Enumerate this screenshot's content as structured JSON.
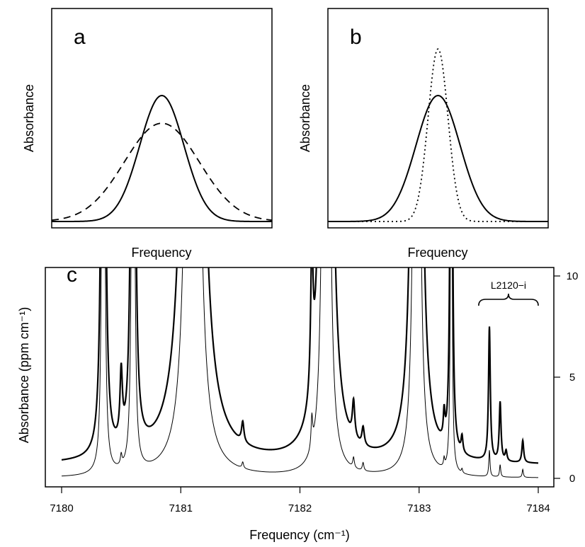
{
  "chart_data": [
    {
      "panel": "a",
      "type": "line",
      "panel_label": "a",
      "xlabel": "Frequency",
      "ylabel": "Absorbance",
      "x_ticks": "none",
      "y_ticks": "none",
      "series": [
        {
          "style": "solid",
          "shape": "gaussian",
          "center": 0.5,
          "width": 0.1,
          "peak": 1.0
        },
        {
          "style": "dashed",
          "shape": "gaussian",
          "center": 0.5,
          "width": 0.17,
          "peak": 0.78
        }
      ]
    },
    {
      "panel": "b",
      "type": "line",
      "panel_label": "b",
      "xlabel": "Frequency",
      "ylabel": "Absorbance",
      "x_ticks": "none",
      "y_ticks": "none",
      "series": [
        {
          "style": "solid",
          "shape": "gaussian",
          "center": 0.5,
          "width": 0.1,
          "peak": 1.0
        },
        {
          "style": "dotted",
          "shape": "gaussian",
          "center": 0.5,
          "width": 0.045,
          "peak": 1.37
        }
      ]
    },
    {
      "panel": "c",
      "type": "line",
      "panel_label": "c",
      "xlabel": "Frequency (cm⁻¹)",
      "ylabel": "Absorbance (ppm cm⁻¹)",
      "xlim": [
        7180,
        7184
      ],
      "ylim": [
        0,
        10
      ],
      "x_ticks": [
        "7180",
        "7181",
        "7182",
        "7183",
        "7184"
      ],
      "y_ticks": [
        "0",
        "5",
        "10"
      ],
      "y_axis_side": "right",
      "annotation": {
        "text": "L2120−i",
        "from": 7183.5,
        "to": 7184.0
      },
      "series": [
        {
          "style": "thick",
          "baseline": 0.65,
          "peaks": [
            {
              "x": 7180.35,
              "h": 60,
              "w": 0.012
            },
            {
              "x": 7180.5,
              "h": 3.3,
              "w": 0.012
            },
            {
              "x": 7180.6,
              "h": 60,
              "w": 0.012
            },
            {
              "x": 7181.1,
              "h": 200,
              "w": 0.03
            },
            {
              "x": 7181.52,
              "h": 1.0,
              "w": 0.012
            },
            {
              "x": 7182.1,
              "h": 6.8,
              "w": 0.012
            },
            {
              "x": 7182.22,
              "h": 160,
              "w": 0.02
            },
            {
              "x": 7182.45,
              "h": 1.8,
              "w": 0.012
            },
            {
              "x": 7182.53,
              "h": 0.9,
              "w": 0.012
            },
            {
              "x": 7182.98,
              "h": 120,
              "w": 0.02
            },
            {
              "x": 7183.21,
              "h": 1.3,
              "w": 0.008
            },
            {
              "x": 7183.27,
              "h": 40,
              "w": 0.008
            },
            {
              "x": 7183.36,
              "h": 0.8,
              "w": 0.009
            },
            {
              "x": 7183.59,
              "h": 6.6,
              "w": 0.009
            },
            {
              "x": 7183.68,
              "h": 2.9,
              "w": 0.009
            },
            {
              "x": 7183.73,
              "h": 0.5,
              "w": 0.009
            },
            {
              "x": 7183.87,
              "h": 1.1,
              "w": 0.009
            }
          ]
        },
        {
          "style": "thin",
          "baseline": 0.0,
          "peaks": [
            {
              "x": 7180.35,
              "h": 60,
              "w": 0.008
            },
            {
              "x": 7180.5,
              "h": 0.5,
              "w": 0.008
            },
            {
              "x": 7180.6,
              "h": 60,
              "w": 0.008
            },
            {
              "x": 7181.1,
              "h": 200,
              "w": 0.02
            },
            {
              "x": 7181.52,
              "h": 0.3,
              "w": 0.008
            },
            {
              "x": 7182.1,
              "h": 1.5,
              "w": 0.008
            },
            {
              "x": 7182.22,
              "h": 120,
              "w": 0.014
            },
            {
              "x": 7182.45,
              "h": 0.5,
              "w": 0.008
            },
            {
              "x": 7182.53,
              "h": 0.4,
              "w": 0.008
            },
            {
              "x": 7182.98,
              "h": 100,
              "w": 0.014
            },
            {
              "x": 7183.21,
              "h": 0.4,
              "w": 0.006
            },
            {
              "x": 7183.27,
              "h": 30,
              "w": 0.006
            },
            {
              "x": 7183.36,
              "h": 0.2,
              "w": 0.006
            },
            {
              "x": 7183.59,
              "h": 1.3,
              "w": 0.006
            },
            {
              "x": 7183.68,
              "h": 0.6,
              "w": 0.006
            },
            {
              "x": 7183.87,
              "h": 0.4,
              "w": 0.006
            }
          ]
        }
      ]
    }
  ]
}
